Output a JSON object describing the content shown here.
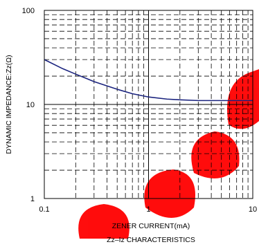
{
  "chart_data": {
    "type": "line",
    "title": "Zz–Iz CHARACTERISTICS",
    "xlabel": "ZENER CURRENT(mA)",
    "ylabel": "DYNAMIC IMPEDANCE:Zz(Ω)",
    "x_scale": "log",
    "y_scale": "log",
    "xlim": [
      0.1,
      10
    ],
    "ylim": [
      1,
      100
    ],
    "x_tick_labels": [
      "0.1",
      "1",
      "10"
    ],
    "y_tick_labels": [
      "1",
      "10",
      "100"
    ],
    "grid": true,
    "series": [
      {
        "x": [
          0.1,
          0.15,
          0.2,
          0.3,
          0.5,
          0.7,
          1.0,
          1.5,
          2.0,
          3.0,
          5.0,
          7.0,
          10.0
        ],
        "y": [
          30,
          24,
          21,
          17.5,
          14.5,
          13,
          12,
          11.4,
          11.2,
          11.0,
          11.0,
          11.0,
          11.0
        ]
      }
    ],
    "colors": {
      "line": "#1a237e",
      "grid": "#000000",
      "frame": "#000000",
      "watermark": "#ff0000"
    }
  }
}
